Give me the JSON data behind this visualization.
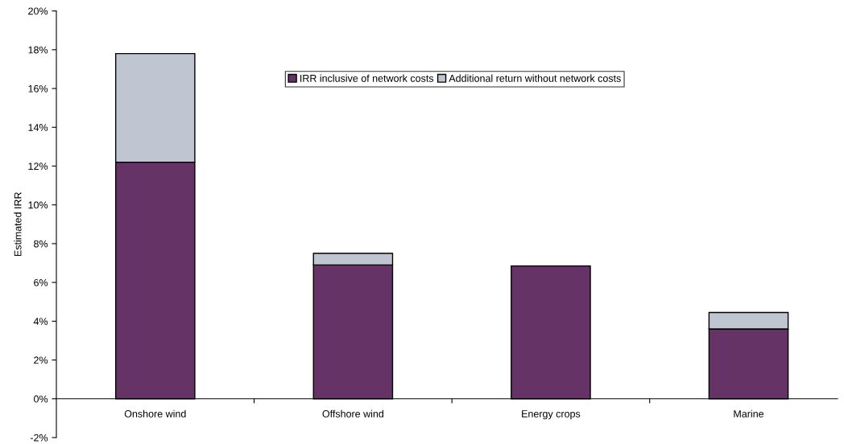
{
  "chart_data": {
    "type": "bar",
    "stacked": true,
    "ylabel": "Estimated IRR",
    "categories": [
      "Onshore wind",
      "Offshore wind",
      "Energy crops",
      "Marine"
    ],
    "series": [
      {
        "name": "IRR inclusive of network costs",
        "color": "#663366",
        "values": [
          12.2,
          6.9,
          6.85,
          3.6
        ]
      },
      {
        "name": "Additional return without network costs",
        "color": "#bfc5d1",
        "values": [
          5.6,
          0.6,
          null,
          0.85
        ]
      }
    ],
    "ylim": [
      -2,
      20
    ],
    "yticks": [
      {
        "value": -2,
        "label": "-2%"
      },
      {
        "value": 0,
        "label": "0%"
      },
      {
        "value": 2,
        "label": "2%"
      },
      {
        "value": 4,
        "label": "4%"
      },
      {
        "value": 6,
        "label": "6%"
      },
      {
        "value": 8,
        "label": "8%"
      },
      {
        "value": 10,
        "label": "10%"
      },
      {
        "value": 12,
        "label": "12%"
      },
      {
        "value": 14,
        "label": "14%"
      },
      {
        "value": 16,
        "label": "16%"
      },
      {
        "value": 18,
        "label": "18%"
      },
      {
        "value": 20,
        "label": "20%"
      }
    ],
    "grid": false,
    "legend": "top"
  }
}
